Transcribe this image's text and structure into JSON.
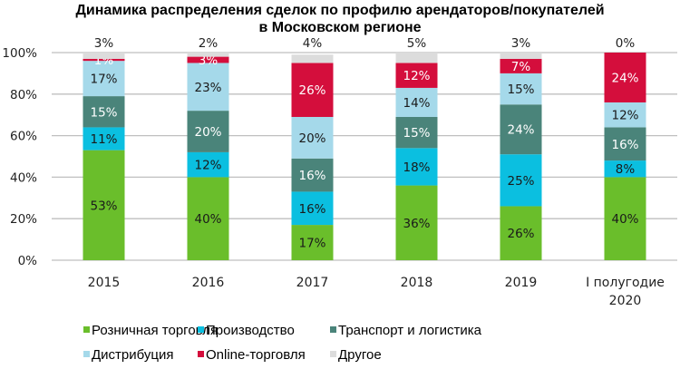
{
  "chart_data": {
    "type": "bar",
    "stacked": true,
    "title": "Динамика распределения сделок по профилю арендаторов/покупателей",
    "subtitle": "в Московском регионе",
    "xlabel": "",
    "ylabel": "",
    "ylim": [
      0,
      100
    ],
    "yticks": [
      "0%",
      "20%",
      "40%",
      "60%",
      "80%",
      "100%"
    ],
    "ytick_values": [
      0,
      20,
      40,
      60,
      80,
      100
    ],
    "grid": true,
    "legend_position": "bottom",
    "categories": [
      {
        "label": [
          "2015"
        ]
      },
      {
        "label": [
          "2016"
        ]
      },
      {
        "label": [
          "2017"
        ]
      },
      {
        "label": [
          "2018"
        ]
      },
      {
        "label": [
          "2019"
        ]
      },
      {
        "label": [
          "I полугодие",
          "2020"
        ]
      }
    ],
    "series": [
      {
        "name": "Розничная торговля",
        "color": "#6ABE2B",
        "label_color": "#1a1a1a",
        "values": [
          53,
          40,
          17,
          36,
          26,
          40
        ]
      },
      {
        "name": "Производство",
        "color": "#0BBFE0",
        "label_color": "#1a1a1a",
        "values": [
          11,
          12,
          16,
          18,
          25,
          8
        ]
      },
      {
        "name": "Транспорт и логистика",
        "color": "#4A847A",
        "label_color": "#ffffff",
        "values": [
          15,
          20,
          16,
          15,
          24,
          16
        ]
      },
      {
        "name": "Дистрибуция",
        "color": "#A5D9EA",
        "label_color": "#1a1a1a",
        "values": [
          17,
          23,
          20,
          14,
          15,
          12
        ]
      },
      {
        "name": "Online-торговля",
        "color": "#D40E3C",
        "label_color": "#ffffff",
        "values": [
          1,
          3,
          26,
          12,
          7,
          24
        ]
      },
      {
        "name": "Другое",
        "color": "#DCDCDC",
        "label_color": "#222222",
        "values": [
          3,
          2,
          4,
          5,
          3,
          0
        ]
      }
    ],
    "value_format": "{v}%",
    "other_label_position": "above"
  }
}
